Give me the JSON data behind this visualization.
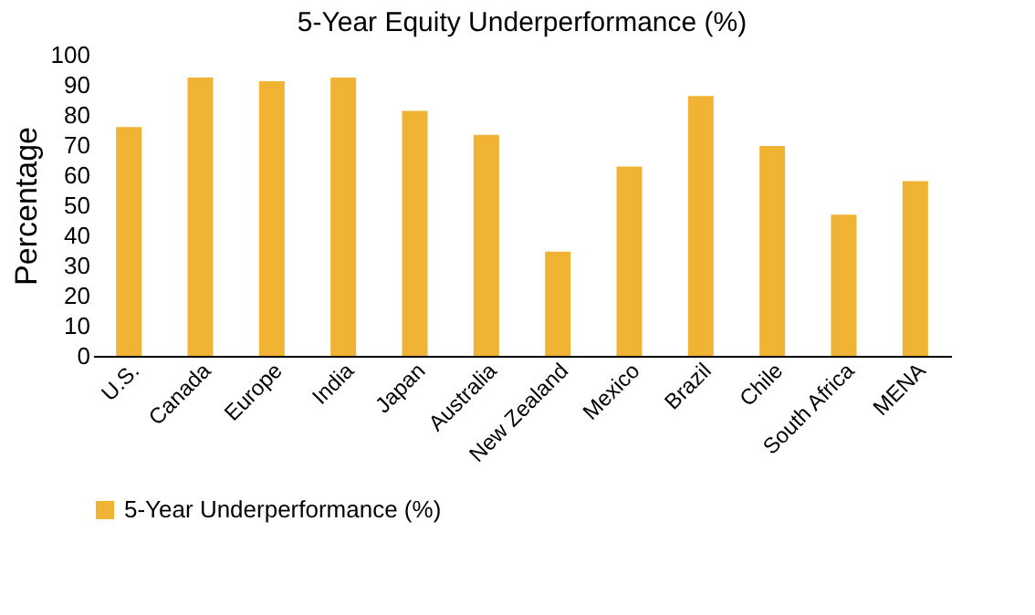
{
  "chart_data": {
    "type": "bar",
    "title": "5-Year Equity Underperformance  (%)",
    "ylabel": "Percentage",
    "categories": [
      "U.S.",
      "Canada",
      "Europe",
      "India",
      "Japan",
      "Australia",
      "New Zealand",
      "Mexico",
      "Brazil",
      "Chile",
      "South Africa",
      "MENA"
    ],
    "series": [
      {
        "name": "5-Year Underperformance (%)",
        "color": "#f0b333",
        "values": [
          76,
          92.4,
          91.2,
          92.4,
          81.4,
          73.4,
          34.6,
          62.9,
          86.3,
          69.7,
          46.9,
          58
        ]
      }
    ],
    "ylim": [
      0,
      100
    ],
    "yticks": [
      0,
      10,
      20,
      30,
      40,
      50,
      60,
      70,
      80,
      90,
      100
    ],
    "grid": false,
    "legend": "bottom"
  }
}
